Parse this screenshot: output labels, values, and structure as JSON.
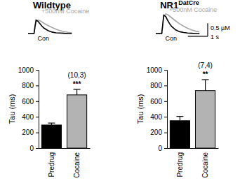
{
  "chart_data": [
    {
      "type": "line",
      "title": "Wildtype",
      "x": [
        0,
        0.2,
        0.3,
        0.35,
        0.4,
        0.5,
        0.6,
        0.7,
        0.8,
        1.0,
        1.2,
        1.4,
        1.6,
        1.8,
        2.0,
        2.2
      ],
      "series": [
        {
          "name": "Con",
          "color": "#000000",
          "values": [
            0,
            0,
            0,
            0.3,
            0.55,
            0.5,
            0.4,
            0.3,
            0.22,
            0.12,
            0.06,
            0.03,
            0.02,
            0.01,
            0,
            0
          ]
        },
        {
          "name": "+500nM Cocaine",
          "color": "#a6a6a6",
          "values": [
            0,
            0,
            0,
            0.25,
            0.5,
            0.55,
            0.52,
            0.47,
            0.42,
            0.33,
            0.25,
            0.18,
            0.12,
            0.08,
            0.05,
            0.03
          ]
        }
      ],
      "xlim": [
        0,
        2.4
      ],
      "ylim": [
        0,
        0.8
      ],
      "tick_labels": false
    },
    {
      "type": "bar",
      "categories": [
        "Predrug",
        "Cocaine"
      ],
      "values": [
        295,
        680
      ],
      "errors": [
        25,
        70
      ],
      "colors": [
        "#000000",
        "#b3b3b3"
      ],
      "y_label": "Tau (ms)",
      "ylim": [
        0,
        1000
      ],
      "yticks": [
        0,
        200,
        400,
        600,
        800,
        1000
      ],
      "annotations": [
        "(10,3)",
        "***"
      ]
    },
    {
      "type": "line",
      "title": "NR1DatCre",
      "x": [
        0,
        0.2,
        0.3,
        0.35,
        0.4,
        0.5,
        0.6,
        0.7,
        0.8,
        1.0,
        1.2,
        1.4,
        1.6,
        1.8,
        2.0,
        2.2
      ],
      "series": [
        {
          "name": "Con",
          "color": "#000000",
          "values": [
            0,
            0,
            0,
            0.35,
            0.7,
            0.65,
            0.5,
            0.37,
            0.27,
            0.14,
            0.07,
            0.04,
            0.02,
            0.01,
            0,
            0
          ]
        },
        {
          "name": "+500nM Cocaine",
          "color": "#a6a6a6",
          "values": [
            0,
            0,
            0,
            0.3,
            0.65,
            0.75,
            0.72,
            0.66,
            0.6,
            0.48,
            0.37,
            0.28,
            0.2,
            0.14,
            0.09,
            0.06
          ]
        }
      ],
      "xlim": [
        0,
        2.4
      ],
      "ylim": [
        0,
        0.8
      ],
      "tick_labels": false,
      "scale_bar": {
        "x": 1,
        "y": 0.5,
        "x_label": "1 s",
        "y_label": "0.5 µM"
      }
    },
    {
      "type": "bar",
      "categories": [
        "Predrug",
        "Cocaine"
      ],
      "values": [
        350,
        735
      ],
      "errors": [
        55,
        140
      ],
      "colors": [
        "#000000",
        "#b3b3b3"
      ],
      "y_label": "Tau (ms)",
      "ylim": [
        0,
        1000
      ],
      "yticks": [
        0,
        200,
        400,
        600,
        800,
        1000
      ],
      "annotations": [
        "(7,4)",
        "**"
      ]
    }
  ]
}
